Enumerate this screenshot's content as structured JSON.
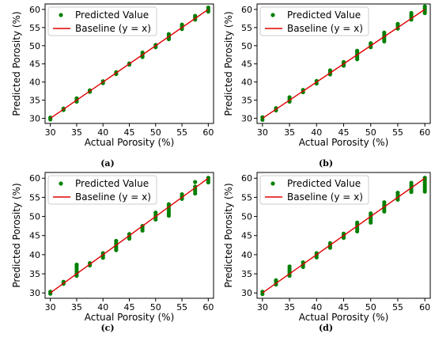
{
  "figure": {
    "panel_labels": [
      "(a)",
      "(b)",
      "(c)",
      "(d)"
    ]
  },
  "colors": {
    "points": "#008000",
    "baseline": "#e00000"
  },
  "chart_data": [
    {
      "type": "scatter",
      "panel": "(a)",
      "xlabel": "Actual Porosity (%)",
      "ylabel": "Predicted Porosity (%)",
      "xlim": [
        29,
        61
      ],
      "ylim": [
        28.6,
        61.5
      ],
      "xticks": [
        30,
        35,
        40,
        45,
        50,
        55,
        60
      ],
      "yticks": [
        30,
        35,
        40,
        45,
        50,
        55,
        60
      ],
      "grid": false,
      "legend": {
        "position": "top-left",
        "entries": [
          "Predicted Value",
          "Baseline (y = x)"
        ]
      },
      "series": [
        {
          "name": "Predicted Value",
          "points": [
            [
              30,
              29.7
            ],
            [
              30,
              30.2
            ],
            [
              32.5,
              32.3
            ],
            [
              32.5,
              32.7
            ],
            [
              35,
              34.6
            ],
            [
              35,
              35.0
            ],
            [
              35,
              35.5
            ],
            [
              37.5,
              37.3
            ],
            [
              37.5,
              37.7
            ],
            [
              40,
              39.7
            ],
            [
              40,
              40.2
            ],
            [
              42.5,
              42.2
            ],
            [
              42.5,
              42.7
            ],
            [
              45,
              44.8
            ],
            [
              45,
              45.1
            ],
            [
              47.5,
              46.9
            ],
            [
              47.5,
              47.5
            ],
            [
              47.5,
              48.1
            ],
            [
              50,
              49.6
            ],
            [
              50,
              50.2
            ],
            [
              52.5,
              51.8
            ],
            [
              52.5,
              52.3
            ],
            [
              52.5,
              52.8
            ],
            [
              52.5,
              53.2
            ],
            [
              55,
              54.6
            ],
            [
              55,
              55.2
            ],
            [
              55,
              55.8
            ],
            [
              57.5,
              57.2
            ],
            [
              57.5,
              57.7
            ],
            [
              57.5,
              58.2
            ],
            [
              60,
              59.4
            ],
            [
              60,
              60.0
            ],
            [
              60,
              60.5
            ]
          ]
        },
        {
          "name": "Baseline (y = x)",
          "line": [
            [
              30,
              30
            ],
            [
              60,
              60
            ]
          ]
        }
      ]
    },
    {
      "type": "scatter",
      "panel": "(b)",
      "xlabel": "Actual Porosity (%)",
      "ylabel": "Predicted Porosity (%)",
      "xlim": [
        29,
        61
      ],
      "ylim": [
        28.6,
        61.5
      ],
      "xticks": [
        30,
        35,
        40,
        45,
        50,
        55,
        60
      ],
      "yticks": [
        30,
        35,
        40,
        45,
        50,
        55,
        60
      ],
      "grid": false,
      "legend": {
        "position": "top-left",
        "entries": [
          "Predicted Value",
          "Baseline (y = x)"
        ]
      },
      "series": [
        {
          "name": "Predicted Value",
          "points": [
            [
              30,
              29.6
            ],
            [
              30,
              30.3
            ],
            [
              32.5,
              32.2
            ],
            [
              32.5,
              32.8
            ],
            [
              35,
              34.6
            ],
            [
              35,
              35.2
            ],
            [
              35,
              35.8
            ],
            [
              37.5,
              37.2
            ],
            [
              37.5,
              37.8
            ],
            [
              40,
              39.6
            ],
            [
              40,
              40.3
            ],
            [
              42.5,
              42.1
            ],
            [
              42.5,
              42.6
            ],
            [
              42.5,
              43.2
            ],
            [
              45,
              44.5
            ],
            [
              45,
              45.0
            ],
            [
              45,
              45.5
            ],
            [
              47.5,
              46.3
            ],
            [
              47.5,
              46.9
            ],
            [
              47.5,
              47.5
            ],
            [
              47.5,
              48.1
            ],
            [
              47.5,
              48.6
            ],
            [
              50,
              49.6
            ],
            [
              50,
              50.2
            ],
            [
              50,
              50.7
            ],
            [
              52.5,
              51.2
            ],
            [
              52.5,
              51.8
            ],
            [
              52.5,
              52.4
            ],
            [
              52.5,
              53.0
            ],
            [
              52.5,
              53.6
            ],
            [
              55,
              54.7
            ],
            [
              55,
              55.4
            ],
            [
              55,
              56.0
            ],
            [
              57.5,
              57.2
            ],
            [
              57.5,
              57.8
            ],
            [
              57.5,
              58.4
            ],
            [
              57.5,
              59.0
            ],
            [
              60,
              59.0
            ],
            [
              60,
              59.6
            ],
            [
              60,
              60.2
            ],
            [
              60,
              60.8
            ]
          ]
        },
        {
          "name": "Baseline (y = x)",
          "line": [
            [
              30,
              30
            ],
            [
              60,
              60
            ]
          ]
        }
      ]
    },
    {
      "type": "scatter",
      "panel": "(c)",
      "xlabel": "Actual Porosity (%)",
      "ylabel": "Predicted Porosity (%)",
      "xlim": [
        29,
        61
      ],
      "ylim": [
        28.6,
        61.5
      ],
      "xticks": [
        30,
        35,
        40,
        45,
        50,
        55,
        60
      ],
      "yticks": [
        30,
        35,
        40,
        45,
        50,
        55,
        60
      ],
      "grid": false,
      "legend": {
        "position": "top-left",
        "entries": [
          "Predicted Value",
          "Baseline (y = x)"
        ]
      },
      "series": [
        {
          "name": "Predicted Value",
          "points": [
            [
              30,
              29.8
            ],
            [
              30,
              30.3
            ],
            [
              32.5,
              32.4
            ],
            [
              32.5,
              32.9
            ],
            [
              35,
              34.5
            ],
            [
              35,
              35.1
            ],
            [
              35,
              35.7
            ],
            [
              35,
              36.3
            ],
            [
              35,
              36.9
            ],
            [
              35,
              37.4
            ],
            [
              37.5,
              37.2
            ],
            [
              37.5,
              37.8
            ],
            [
              40,
              39.2
            ],
            [
              40,
              39.8
            ],
            [
              40,
              40.4
            ],
            [
              42.5,
              41.2
            ],
            [
              42.5,
              41.8
            ],
            [
              42.5,
              42.4
            ],
            [
              42.5,
              43.0
            ],
            [
              42.5,
              43.6
            ],
            [
              45,
              44.2
            ],
            [
              45,
              44.8
            ],
            [
              45,
              45.4
            ],
            [
              47.5,
              46.3
            ],
            [
              47.5,
              46.9
            ],
            [
              47.5,
              47.5
            ],
            [
              50,
              49.2
            ],
            [
              50,
              49.8
            ],
            [
              50,
              50.4
            ],
            [
              50,
              51.0
            ],
            [
              52.5,
              50.2
            ],
            [
              52.5,
              50.8
            ],
            [
              52.5,
              51.4
            ],
            [
              52.5,
              52.0
            ],
            [
              52.5,
              52.6
            ],
            [
              52.5,
              53.2
            ],
            [
              55,
              54.6
            ],
            [
              55,
              55.2
            ],
            [
              55,
              55.8
            ],
            [
              57.5,
              56.0
            ],
            [
              57.5,
              56.6
            ],
            [
              57.5,
              57.2
            ],
            [
              57.5,
              57.8
            ],
            [
              57.5,
              59.0
            ],
            [
              60,
              58.9
            ],
            [
              60,
              59.5
            ],
            [
              60,
              60.1
            ]
          ]
        },
        {
          "name": "Baseline (y = x)",
          "line": [
            [
              30,
              30
            ],
            [
              60,
              60
            ]
          ]
        }
      ]
    },
    {
      "type": "scatter",
      "panel": "(d)",
      "xlabel": "Actual Porosity (%)",
      "ylabel": "Predicted Porosity (%)",
      "xlim": [
        29,
        61
      ],
      "ylim": [
        28.6,
        61.5
      ],
      "xticks": [
        30,
        35,
        40,
        45,
        50,
        55,
        60
      ],
      "yticks": [
        30,
        35,
        40,
        45,
        50,
        55,
        60
      ],
      "grid": false,
      "legend": {
        "position": "top-left",
        "entries": [
          "Predicted Value",
          "Baseline (y = x)"
        ]
      },
      "series": [
        {
          "name": "Predicted Value",
          "points": [
            [
              30,
              29.7
            ],
            [
              30,
              30.3
            ],
            [
              32.5,
              32.2
            ],
            [
              32.5,
              32.8
            ],
            [
              32.5,
              33.3
            ],
            [
              35,
              34.5
            ],
            [
              35,
              35.1
            ],
            [
              35,
              35.7
            ],
            [
              35,
              36.3
            ],
            [
              35,
              36.9
            ],
            [
              37.5,
              36.8
            ],
            [
              37.5,
              37.4
            ],
            [
              37.5,
              38.0
            ],
            [
              40,
              39.3
            ],
            [
              40,
              39.9
            ],
            [
              40,
              40.4
            ],
            [
              42.5,
              41.8
            ],
            [
              42.5,
              42.4
            ],
            [
              42.5,
              43.0
            ],
            [
              45,
              44.4
            ],
            [
              45,
              45.0
            ],
            [
              45,
              45.5
            ],
            [
              47.5,
              46.1
            ],
            [
              47.5,
              46.7
            ],
            [
              47.5,
              47.3
            ],
            [
              47.5,
              47.9
            ],
            [
              47.5,
              48.4
            ],
            [
              50,
              48.4
            ],
            [
              50,
              49.0
            ],
            [
              50,
              49.6
            ],
            [
              50,
              50.2
            ],
            [
              50,
              50.8
            ],
            [
              52.5,
              51.3
            ],
            [
              52.5,
              51.9
            ],
            [
              52.5,
              52.5
            ],
            [
              52.5,
              53.1
            ],
            [
              52.5,
              53.7
            ],
            [
              55,
              54.4
            ],
            [
              55,
              55.0
            ],
            [
              55,
              55.6
            ],
            [
              55,
              56.2
            ],
            [
              57.5,
              56.4
            ],
            [
              57.5,
              57.0
            ],
            [
              57.5,
              57.6
            ],
            [
              57.5,
              58.2
            ],
            [
              57.5,
              58.8
            ],
            [
              60,
              56.5
            ],
            [
              60,
              57.1
            ],
            [
              60,
              57.7
            ],
            [
              60,
              58.3
            ],
            [
              60,
              58.9
            ],
            [
              60,
              59.5
            ],
            [
              60,
              60.1
            ]
          ]
        },
        {
          "name": "Baseline (y = x)",
          "line": [
            [
              30,
              30
            ],
            [
              60,
              60
            ]
          ]
        }
      ]
    }
  ]
}
